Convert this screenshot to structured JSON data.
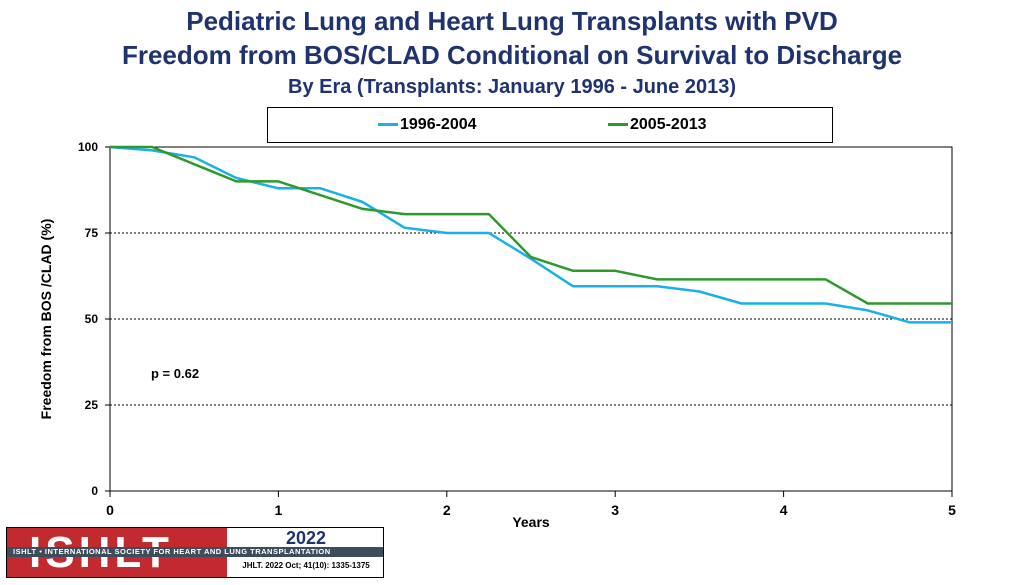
{
  "title": {
    "line1": "Pediatric Lung and Heart Lung Transplants with PVD",
    "line2": "Freedom from BOS/CLAD Conditional on Survival to Discharge",
    "line3": "By Era (Transplants: January 1996 - June 2013)"
  },
  "colors": {
    "series1": "#1ab0e8",
    "series2": "#2e9a2e",
    "title": "#1f3370",
    "logo_red": "#c32a2f"
  },
  "chart_data": {
    "type": "line",
    "xlabel": "Years",
    "ylabel": "Freedom from BOS /CLAD (%)",
    "xlim": [
      0,
      5
    ],
    "ylim": [
      0,
      100
    ],
    "xticks": [
      "0",
      "1",
      "2",
      "3",
      "4",
      "5"
    ],
    "yticks": [
      "0",
      "25",
      "50",
      "75",
      "100"
    ],
    "annotation": "p = 0.62",
    "legend_position": "top",
    "series": [
      {
        "name": "1996-2004",
        "x": [
          0,
          0.25,
          0.5,
          0.75,
          1.0,
          1.25,
          1.5,
          1.75,
          2.0,
          2.25,
          2.5,
          2.75,
          3.0,
          3.25,
          3.5,
          3.75,
          4.0,
          4.25,
          4.5,
          4.75,
          5.0
        ],
        "y": [
          100,
          99,
          97,
          91,
          88,
          88,
          84,
          76.5,
          75,
          75,
          67.5,
          59.5,
          59.5,
          59.5,
          58,
          54.5,
          54.5,
          54.5,
          52.5,
          49,
          49
        ]
      },
      {
        "name": "2005-2013",
        "x": [
          0,
          0.25,
          0.5,
          0.75,
          1.0,
          1.25,
          1.5,
          1.75,
          2.0,
          2.25,
          2.5,
          2.75,
          3.0,
          3.25,
          3.5,
          3.75,
          4.0,
          4.25,
          4.5,
          4.75,
          5.0
        ],
        "y": [
          100,
          100,
          95,
          90,
          90,
          86,
          82,
          80.5,
          80.5,
          80.5,
          68,
          64,
          64,
          61.5,
          61.5,
          61.5,
          61.5,
          61.5,
          54.5,
          54.5,
          54.5
        ]
      }
    ]
  },
  "logo": {
    "word": "ISHLT",
    "band": "ISHLT • INTERNATIONAL SOCIETY FOR HEART AND LUNG TRANSPLANTATION",
    "year": "2022",
    "citation": "JHLT. 2022 Oct; 41(10): 1335-1375"
  }
}
